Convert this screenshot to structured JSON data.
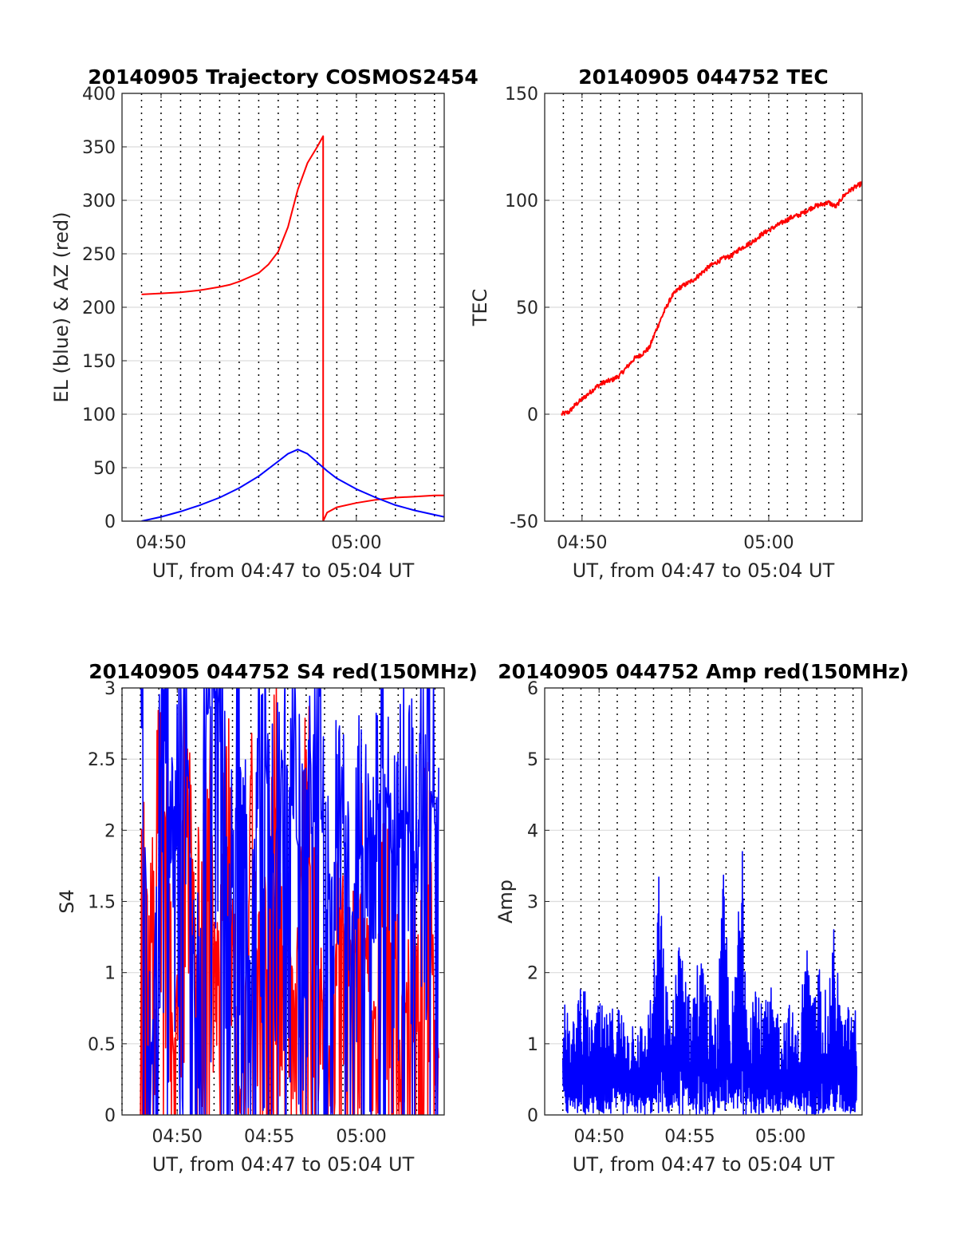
{
  "figure": {
    "background": "#ffffff"
  },
  "colors": {
    "red": "#ff0000",
    "blue": "#0000ff"
  },
  "chart_data": [
    {
      "id": "trajectory",
      "type": "line",
      "title": "20140905 Trajectory COSMOS2454",
      "xlabel": "UT, from 04:47 to 05:04 UT",
      "ylabel": "EL (blue) & AZ (red)",
      "xlim": [
        288,
        304.5
      ],
      "ylim": [
        0,
        400
      ],
      "yticks": [
        0,
        50,
        100,
        150,
        200,
        250,
        300,
        350,
        400
      ],
      "yticklabels": [
        "0",
        "50",
        "100",
        "150",
        "200",
        "250",
        "300",
        "350",
        "400"
      ],
      "xticks": [
        290,
        300
      ],
      "xticklabels": [
        "04:50",
        "05:00"
      ],
      "vgrid_x": [
        289,
        290,
        291,
        292,
        293,
        294,
        295,
        296,
        297,
        298,
        299,
        300,
        301,
        302,
        303,
        304
      ],
      "grid": "on",
      "series": [
        {
          "color": "#ff0000",
          "x": [
            289.0,
            290.0,
            291.0,
            292.0,
            293.0,
            293.5,
            294.0,
            294.5,
            295.0,
            295.5,
            296.0,
            296.5,
            297.0,
            297.5,
            298.0,
            298.3,
            298.3,
            298.5,
            299.0,
            300.0,
            301.0,
            302.0,
            303.0,
            304.0,
            304.5
          ],
          "y": [
            212,
            213,
            214,
            216,
            219,
            221,
            224,
            228,
            232,
            240,
            252,
            275,
            310,
            335,
            350,
            360,
            0,
            8,
            13,
            17,
            20,
            22,
            23,
            24,
            24
          ]
        },
        {
          "color": "#0000ff",
          "x": [
            289.0,
            290.0,
            291.0,
            292.0,
            293.0,
            294.0,
            295.0,
            296.0,
            296.5,
            297.0,
            297.5,
            298.0,
            298.5,
            299.0,
            300.0,
            301.0,
            302.0,
            303.0,
            304.0,
            304.5
          ],
          "y": [
            0,
            4,
            9,
            15,
            22,
            31,
            42,
            56,
            63,
            67,
            63,
            55,
            47,
            40,
            30,
            22,
            15,
            10,
            6,
            4
          ]
        }
      ]
    },
    {
      "id": "tec",
      "type": "line",
      "title": "20140905 044752 TEC",
      "xlabel": "UT, from 04:47 to 05:04 UT",
      "ylabel": "TEC",
      "xlim": [
        288,
        305
      ],
      "ylim": [
        -50,
        150
      ],
      "yticks": [
        -50,
        0,
        50,
        100,
        150
      ],
      "yticklabels": [
        "-50",
        "0",
        "50",
        "100",
        "150"
      ],
      "xticks": [
        290,
        300
      ],
      "xticklabels": [
        "04:50",
        "05:00"
      ],
      "vgrid_x": [
        289,
        290,
        291,
        292,
        293,
        294,
        295,
        296,
        297,
        298,
        299,
        300,
        301,
        302,
        303,
        304
      ],
      "grid": "on",
      "series": [
        {
          "color": "#ff0000",
          "x": [
            288.9,
            289.3,
            289.6,
            290.0,
            290.4,
            290.8,
            291.2,
            291.6,
            292.0,
            292.4,
            292.8,
            293.2,
            293.6,
            294.0,
            294.4,
            294.8,
            295.0,
            295.2,
            295.6,
            296.0,
            296.4,
            296.8,
            297.2,
            297.6,
            298.0,
            298.4,
            298.8,
            299.2,
            299.6,
            300.0,
            300.4,
            300.8,
            301.2,
            301.6,
            302.0,
            302.4,
            302.8,
            303.2,
            303.6,
            304.0,
            304.4,
            304.8,
            305.0
          ],
          "y": [
            0,
            1,
            4,
            7,
            10,
            13,
            15,
            16,
            18,
            22,
            26,
            28,
            31,
            40,
            48,
            55,
            57,
            59,
            61,
            63,
            66,
            69,
            71,
            73,
            74,
            77,
            79,
            81,
            84,
            86,
            88,
            90,
            92,
            93,
            95,
            97,
            98,
            99,
            97,
            102,
            105,
            107,
            108
          ]
        }
      ]
    },
    {
      "id": "s4",
      "type": "line",
      "title": "20140905 044752 S4 red(150MHz)",
      "xlabel": "UT, from 04:47 to 05:04 UT",
      "ylabel": "S4",
      "xlim": [
        287,
        304.5
      ],
      "ylim": [
        0,
        3
      ],
      "yticks": [
        0,
        0.5,
        1,
        1.5,
        2,
        2.5,
        3
      ],
      "yticklabels": [
        "0",
        "0.5",
        "1",
        "1.5",
        "2",
        "2.5",
        "3"
      ],
      "xticks": [
        290,
        295,
        300
      ],
      "xticklabels": [
        "04:50",
        "04:55",
        "05:00"
      ],
      "vgrid_x": [
        287,
        288,
        289,
        290,
        291,
        292,
        293,
        294,
        295,
        296,
        297,
        298,
        299,
        300,
        301,
        302,
        303,
        304
      ],
      "grid": "on",
      "series": [
        {
          "color": "#ff0000",
          "x": [
            288.0,
            288.6,
            289.2,
            289.8,
            290.4,
            291.0,
            291.6,
            292.2,
            292.8,
            293.4,
            294.0,
            294.6,
            295.2,
            295.8,
            296.4,
            297.0,
            297.6,
            298.2,
            298.8,
            299.4,
            300.0,
            300.6,
            301.2,
            301.8,
            302.4,
            303.0,
            303.6,
            304.2
          ],
          "y": [
            2.1,
            1.2,
            2.6,
            0.4,
            2.2,
            1.0,
            2.4,
            0.9,
            2.0,
            0.0,
            1.8,
            0.6,
            2.3,
            1.4,
            0.9,
            2.0,
            1.3,
            0.2,
            1.5,
            0.8,
            1.6,
            0.5,
            1.4,
            1.1,
            0.7,
            1.2,
            1.7,
            0.4
          ]
        },
        {
          "color": "#0000ff",
          "x": [
            288.0,
            288.6,
            289.2,
            289.8,
            290.4,
            291.0,
            291.6,
            292.2,
            292.8,
            293.4,
            294.0,
            294.6,
            295.2,
            295.8,
            296.4,
            297.0,
            297.6,
            298.2,
            298.8,
            299.4,
            300.0,
            300.6,
            301.2,
            301.8,
            302.4,
            303.0,
            303.6,
            304.2
          ],
          "y": [
            3.0,
            0.3,
            2.9,
            1.4,
            3.0,
            0.6,
            2.8,
            3.0,
            1.2,
            2.5,
            0.8,
            2.9,
            1.7,
            2.6,
            2.0,
            1.6,
            2.4,
            1.5,
            2.0,
            1.3,
            1.9,
            1.8,
            2.5,
            1.6,
            2.2,
            1.7,
            2.5,
            1.8
          ]
        }
      ]
    },
    {
      "id": "amp",
      "type": "line",
      "title": "20140905 044752 Amp red(150MHz)",
      "xlabel": "UT, from 04:47 to 05:04 UT",
      "ylabel": "Amp",
      "xlim": [
        287,
        304.5
      ],
      "ylim": [
        0,
        6
      ],
      "yticks": [
        0,
        1,
        2,
        3,
        4,
        5,
        6
      ],
      "yticklabels": [
        "0",
        "1",
        "2",
        "3",
        "4",
        "5",
        "6"
      ],
      "xticks": [
        290,
        295,
        300
      ],
      "xticklabels": [
        "04:50",
        "04:55",
        "05:00"
      ],
      "vgrid_x": [
        288,
        289,
        290,
        291,
        292,
        293,
        294,
        295,
        296,
        297,
        298,
        299,
        300,
        301,
        302,
        303,
        304
      ],
      "grid": "on",
      "series": [
        {
          "color": "#0000ff",
          "x": [
            288.0,
            288.5,
            289.0,
            289.5,
            290.0,
            290.5,
            291.0,
            291.5,
            292.0,
            292.5,
            293.0,
            293.3,
            293.6,
            294.0,
            294.5,
            295.0,
            295.5,
            296.0,
            296.5,
            296.9,
            297.2,
            297.5,
            297.9,
            298.2,
            298.6,
            299.0,
            299.5,
            300.0,
            300.5,
            301.0,
            301.4,
            301.8,
            302.2,
            302.6,
            303.0,
            303.4,
            303.8,
            304.2
          ],
          "y": [
            1.7,
            1.2,
            2.1,
            1.3,
            1.6,
            1.4,
            1.7,
            1.3,
            1.5,
            1.2,
            2.0,
            3.6,
            2.1,
            1.4,
            2.9,
            1.6,
            2.4,
            1.8,
            1.4,
            3.7,
            1.5,
            2.0,
            4.3,
            1.6,
            2.1,
            1.5,
            1.8,
            1.4,
            1.6,
            1.2,
            2.6,
            1.6,
            2.3,
            1.5,
            2.9,
            1.3,
            1.6,
            1.5
          ]
        }
      ]
    }
  ]
}
